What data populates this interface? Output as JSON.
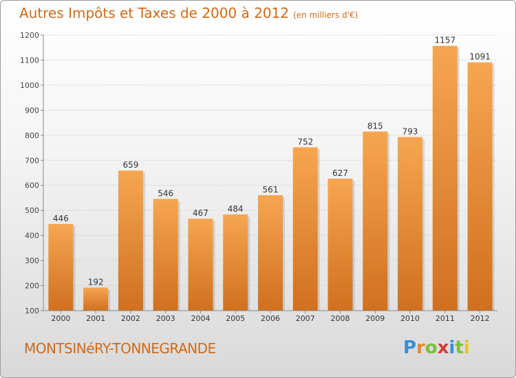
{
  "title": "Autres Impôts et Taxes de 2000 à 2012",
  "unit_note": "(en milliers d'€)",
  "commune": "MONTSINéRY-TONNEGRANDE",
  "logo": {
    "letters": [
      "P",
      "r",
      "o",
      "x",
      "i",
      "t",
      "i"
    ],
    "colors": [
      "#3a8fd8",
      "#e8872a",
      "#7abf3a",
      "#d83a3a",
      "#3a8fd8",
      "#7abf3a",
      "#e8c42a"
    ]
  },
  "colors": {
    "bar_light": "#f6a650",
    "bar_dark": "#d0701e",
    "text_accent": "#d06a16"
  },
  "chart_data": {
    "type": "bar",
    "categories": [
      "2000",
      "2001",
      "2002",
      "2003",
      "2004",
      "2005",
      "2006",
      "2007",
      "2008",
      "2009",
      "2010",
      "2011",
      "2012"
    ],
    "values": [
      446,
      192,
      659,
      546,
      467,
      484,
      561,
      752,
      627,
      815,
      793,
      1157,
      1091
    ],
    "ylim": [
      100,
      1200
    ],
    "yticks": [
      100,
      200,
      300,
      400,
      500,
      600,
      700,
      800,
      900,
      1000,
      1100,
      1200
    ],
    "grid": true
  }
}
